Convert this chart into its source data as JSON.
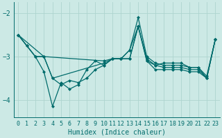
{
  "xlabel": "Humidex (Indice chaleur)",
  "xlim": [
    -0.5,
    23.5
  ],
  "ylim": [
    -4.4,
    -1.75
  ],
  "yticks": [
    -4,
    -3,
    -2
  ],
  "xticks": [
    0,
    1,
    2,
    3,
    4,
    5,
    6,
    7,
    8,
    9,
    10,
    11,
    12,
    13,
    14,
    15,
    16,
    17,
    18,
    19,
    20,
    21,
    22,
    23
  ],
  "background_color": "#cce9e5",
  "grid_color": "#aed4cf",
  "line_color": "#006b6b",
  "series": [
    {
      "x": [
        0,
        1,
        2,
        3,
        10,
        11,
        12,
        13,
        14,
        15,
        16,
        17,
        18,
        19,
        20,
        21,
        22,
        23
      ],
      "y": [
        -2.5,
        -2.75,
        -3.0,
        -3.0,
        -3.1,
        -3.05,
        -3.05,
        -2.85,
        -2.1,
        -3.0,
        -3.15,
        -3.2,
        -3.2,
        -3.2,
        -3.25,
        -3.25,
        -3.45,
        -2.6
      ]
    },
    {
      "x": [
        0,
        1,
        2,
        3,
        4,
        10,
        11,
        12,
        13,
        14,
        15,
        16,
        17,
        18,
        19,
        20,
        21,
        22,
        23
      ],
      "y": [
        -2.5,
        -2.75,
        -3.0,
        -3.0,
        -3.5,
        -3.15,
        -3.05,
        -3.05,
        -2.85,
        -2.3,
        -3.05,
        -3.2,
        -3.25,
        -3.25,
        -3.25,
        -3.3,
        -3.3,
        -3.5,
        -2.6
      ]
    },
    {
      "x": [
        0,
        1,
        2,
        3,
        4,
        5,
        6,
        7,
        8,
        9,
        10,
        11,
        12,
        13,
        14,
        15,
        16,
        17,
        18,
        19,
        20,
        21,
        22,
        23
      ],
      "y": [
        -2.5,
        -2.75,
        -3.0,
        -3.35,
        -4.15,
        -3.6,
        -3.75,
        -3.65,
        -3.3,
        -3.1,
        -3.2,
        -3.05,
        -3.05,
        -3.05,
        -2.3,
        -3.1,
        -3.3,
        -3.3,
        -3.3,
        -3.3,
        -3.35,
        -3.35,
        -3.5,
        -2.6
      ]
    },
    {
      "x": [
        0,
        3,
        4,
        5,
        6,
        7,
        8,
        9,
        10,
        11,
        12,
        13,
        14,
        15,
        16,
        17,
        18,
        19,
        20,
        21,
        22,
        23
      ],
      "y": [
        -2.5,
        -3.0,
        -3.5,
        -3.65,
        -3.55,
        -3.6,
        -3.5,
        -3.3,
        -3.2,
        -3.05,
        -3.05,
        -3.05,
        -2.3,
        -3.1,
        -3.2,
        -3.15,
        -3.15,
        -3.15,
        -3.25,
        -3.25,
        -3.5,
        -2.6
      ]
    }
  ],
  "marker": "D",
  "markersize": 2,
  "linewidth": 0.9,
  "xlabel_fontsize": 7,
  "tick_fontsize": 6,
  "ytick_fontsize": 7
}
